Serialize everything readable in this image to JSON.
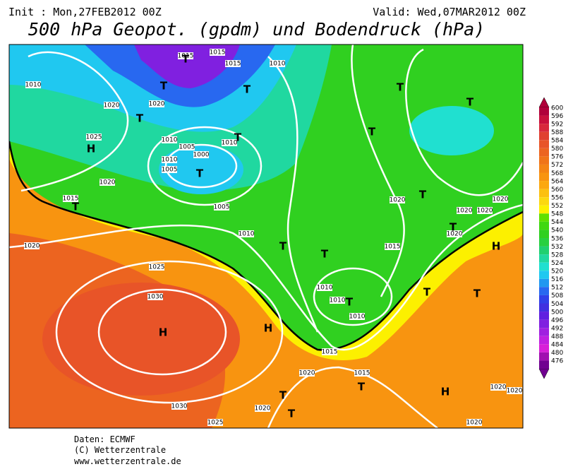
{
  "header": {
    "init": "Init : Mon,27FEB2012 00Z",
    "valid": "Valid: Wed,07MAR2012 00Z",
    "title": "500 hPa Geopot. (gpdm) und Bodendruck (hPa)"
  },
  "colorbar": {
    "values": [
      600,
      596,
      592,
      588,
      584,
      580,
      576,
      572,
      568,
      564,
      560,
      556,
      552,
      548,
      544,
      540,
      536,
      532,
      528,
      524,
      520,
      516,
      512,
      508,
      504,
      500,
      496,
      492,
      488,
      484,
      480,
      476
    ],
    "colors": [
      "#b0003a",
      "#c8103c",
      "#d8283c",
      "#e04030",
      "#e85428",
      "#ec6420",
      "#f07418",
      "#f48414",
      "#f89410",
      "#fca810",
      "#fcc010",
      "#fcd810",
      "#fcf000",
      "#60e000",
      "#40d810",
      "#30d020",
      "#28d040",
      "#20d070",
      "#20d8a0",
      "#20e0d0",
      "#20c8f0",
      "#2098f0",
      "#2868f0",
      "#3040e8",
      "#4030e0",
      "#6020e0",
      "#8020e0",
      "#a020e0",
      "#c020e0",
      "#d820d8",
      "#a010b0",
      "#700090"
    ]
  },
  "map": {
    "isobar_labels": [
      "1015",
      "1015",
      "1015",
      "1010",
      "1010",
      "1020",
      "1020",
      "1025",
      "1010",
      "1010",
      "1005",
      "1005",
      "1000",
      "1010",
      "1020",
      "1015",
      "1005",
      "1010",
      "1020",
      "1025",
      "1030",
      "1020",
      "1020",
      "1020",
      "1020",
      "1020",
      "1015",
      "1010",
      "1010",
      "1010",
      "1015",
      "1015",
      "1020",
      "1020",
      "1030",
      "1025",
      "1020",
      "1020",
      "1020"
    ],
    "systems": [
      "T",
      "T",
      "T",
      "T",
      "H",
      "T",
      "T",
      "T",
      "T",
      "T",
      "T",
      "T",
      "T",
      "T",
      "H",
      "T",
      "T",
      "H",
      "H",
      "T",
      "T",
      "T",
      "T",
      "T",
      "H"
    ]
  },
  "footer": {
    "source": "Daten: ECMWF",
    "copyright": "(C) Wetterzentrale",
    "url": "www.wetterzentrale.de"
  }
}
